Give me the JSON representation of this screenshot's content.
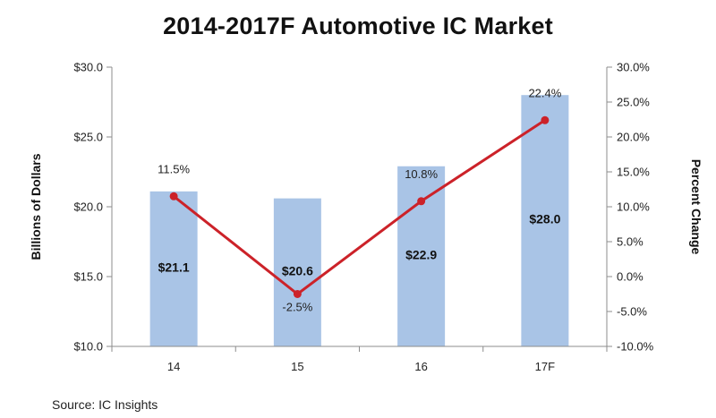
{
  "title": "2014-2017F Automotive IC Market",
  "source": "Source:  IC Insights",
  "chart_data": {
    "type": "bar",
    "categories": [
      "14",
      "15",
      "16",
      "17F"
    ],
    "series": [
      {
        "values": [
          21.1,
          20.6,
          22.9,
          28.0
        ],
        "labels": [
          "$21.1",
          "$20.6",
          "$22.9",
          "$28.0"
        ],
        "axis": "left",
        "kind": "bar",
        "color": "#a9c4e6"
      },
      {
        "values": [
          11.5,
          -2.5,
          10.8,
          22.4
        ],
        "labels": [
          "11.5%",
          "-2.5%",
          "10.8%",
          "22.4%"
        ],
        "axis": "right",
        "kind": "line",
        "color": "#cc2229"
      }
    ],
    "ylabel": "Billions of Dollars",
    "ylim": [
      10,
      30
    ],
    "yticks": [
      10,
      15,
      20,
      25,
      30
    ],
    "ytick_labels": [
      "$10.0",
      "$15.0",
      "$20.0",
      "$25.0",
      "$30.0"
    ],
    "y2label": "Percent Change",
    "y2lim": [
      -10,
      30
    ],
    "y2ticks": [
      -10,
      -5,
      0,
      5,
      10,
      15,
      20,
      25,
      30
    ],
    "y2tick_labels": [
      "-10.0%",
      "-5.0%",
      "0.0%",
      "5.0%",
      "10.0%",
      "15.0%",
      "20.0%",
      "25.0%",
      "30.0%"
    ],
    "grid": false,
    "legend": "none"
  }
}
